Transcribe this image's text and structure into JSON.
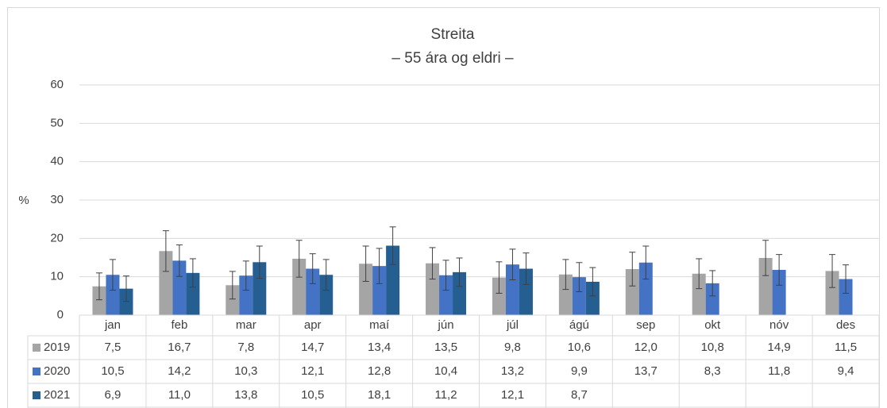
{
  "chart_data": {
    "type": "bar",
    "title": "Streita",
    "subtitle": "– 55 ára og eldri –",
    "y_label": "%",
    "categories": [
      "jan",
      "feb",
      "mar",
      "apr",
      "maí",
      "jún",
      "júl",
      "ágú",
      "sep",
      "okt",
      "nóv",
      "des"
    ],
    "series": [
      {
        "name": "2019",
        "color": "#a5a5a5",
        "values": [
          7.5,
          16.7,
          7.8,
          14.7,
          13.4,
          13.5,
          9.8,
          10.6,
          12.0,
          10.8,
          14.9,
          11.5
        ],
        "value_labels": [
          "7,5",
          "16,7",
          "7,8",
          "14,7",
          "13,4",
          "13,5",
          "9,8",
          "10,6",
          "12,0",
          "10,8",
          "14,9",
          "11,5"
        ],
        "errors": [
          3.5,
          5.3,
          3.6,
          4.8,
          4.6,
          4.1,
          4.1,
          3.9,
          4.4,
          3.9,
          4.6,
          4.3
        ]
      },
      {
        "name": "2020",
        "color": "#4472c4",
        "values": [
          10.5,
          14.2,
          10.3,
          12.1,
          12.8,
          10.4,
          13.2,
          9.9,
          13.7,
          8.3,
          11.8,
          9.4
        ],
        "value_labels": [
          "10,5",
          "14,2",
          "10,3",
          "12,1",
          "12,8",
          "10,4",
          "13,2",
          "9,9",
          "13,7",
          "8,3",
          "11,8",
          "9,4"
        ],
        "errors": [
          4.0,
          4.1,
          3.8,
          3.9,
          4.6,
          3.9,
          4.0,
          3.8,
          4.3,
          3.3,
          4.0,
          3.7
        ]
      },
      {
        "name": "2021",
        "color": "#255e91",
        "values": [
          6.9,
          11.0,
          13.8,
          10.5,
          18.1,
          11.2,
          12.1,
          8.7,
          null,
          null,
          null,
          null
        ],
        "value_labels": [
          "6,9",
          "11,0",
          "13,8",
          "10,5",
          "18,1",
          "11,2",
          "12,1",
          "8,7",
          null,
          null,
          null,
          null
        ],
        "errors": [
          3.3,
          3.7,
          4.2,
          4.0,
          4.9,
          3.7,
          4.1,
          3.7,
          null,
          null,
          null,
          null
        ]
      }
    ],
    "ylim": [
      0,
      60
    ],
    "yticks": [
      0,
      10,
      20,
      30,
      40,
      50,
      60
    ],
    "grid": true,
    "data_table": true
  }
}
